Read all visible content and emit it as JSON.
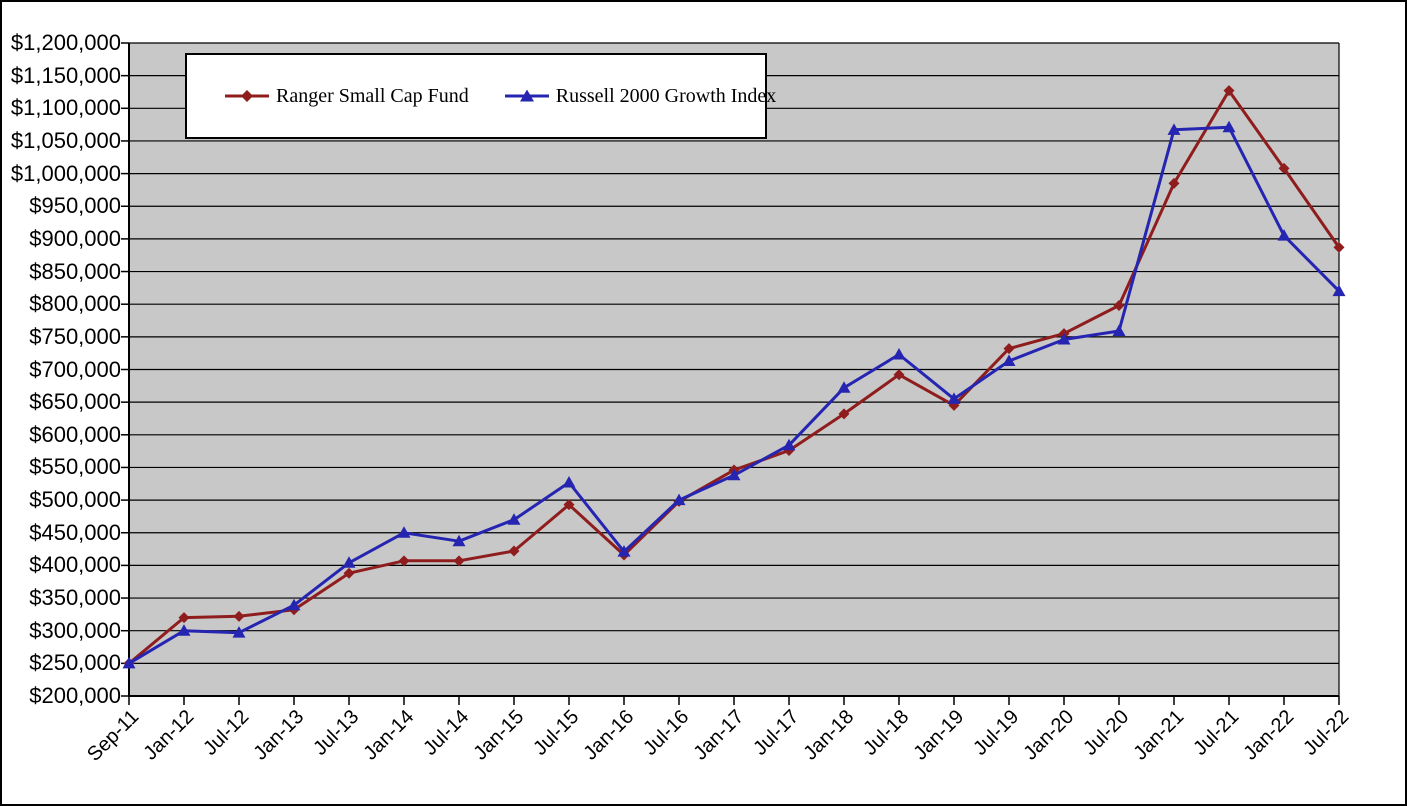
{
  "window": {
    "background_color": "#ffffff",
    "frame_border_color": "#000000"
  },
  "chart_data": {
    "type": "line",
    "title": "",
    "xlabel": "",
    "ylabel": "",
    "categories": [
      "Sep-11",
      "Jan-12",
      "Jul-12",
      "Jan-13",
      "Jul-13",
      "Jan-14",
      "Jul-14",
      "Jan-15",
      "Jul-15",
      "Jan-16",
      "Jul-16",
      "Jan-17",
      "Jul-17",
      "Jan-18",
      "Jul-18",
      "Jan-19",
      "Jul-19",
      "Jan-20",
      "Jul-20",
      "Jan-21",
      "Jul-21",
      "Jan-22",
      "Jul-22"
    ],
    "series": [
      {
        "name": "Ranger Small Cap Fund",
        "color": "#8F1D1D",
        "marker": "diamond",
        "values": [
          250000,
          320000,
          322000,
          332000,
          388000,
          407000,
          407000,
          422000,
          493000,
          416000,
          498000,
          546000,
          576000,
          632000,
          692000,
          645000,
          732000,
          755000,
          798000,
          985000,
          1127000,
          1008000,
          887000
        ]
      },
      {
        "name": "Russell 2000 Growth Index",
        "color": "#2525B2",
        "marker": "triangle-up",
        "values": [
          250000,
          300000,
          297000,
          339000,
          404000,
          450000,
          437000,
          470000,
          527000,
          421000,
          500000,
          538000,
          584000,
          672000,
          723000,
          655000,
          713000,
          746000,
          759000,
          1067000,
          1071000,
          905000,
          820000
        ]
      }
    ],
    "y_axis": {
      "min": 200000,
      "max": 1200000,
      "step": 50000,
      "format": "$#,##0",
      "tick_labels": [
        "$1,200,000",
        "$1,150,000",
        "$1,100,000",
        "$1,050,000",
        "$1,000,000",
        "$950,000",
        "$900,000",
        "$850,000",
        "$800,000",
        "$750,000",
        "$700,000",
        "$650,000",
        "$600,000",
        "$550,000",
        "$500,000",
        "$450,000",
        "$400,000",
        "$350,000",
        "$300,000",
        "$250,000",
        "$200,000"
      ]
    },
    "x_axis": {
      "label_rotation_deg": 45
    },
    "legend": {
      "position": "top-left",
      "entries": [
        "Ranger Small Cap Fund",
        "Russell 2000 Growth Index"
      ]
    },
    "plot_style": {
      "background": "#C8C8C8",
      "gridline_color": "#000000",
      "axis_color": "#000000",
      "grid": "horizontal"
    }
  }
}
